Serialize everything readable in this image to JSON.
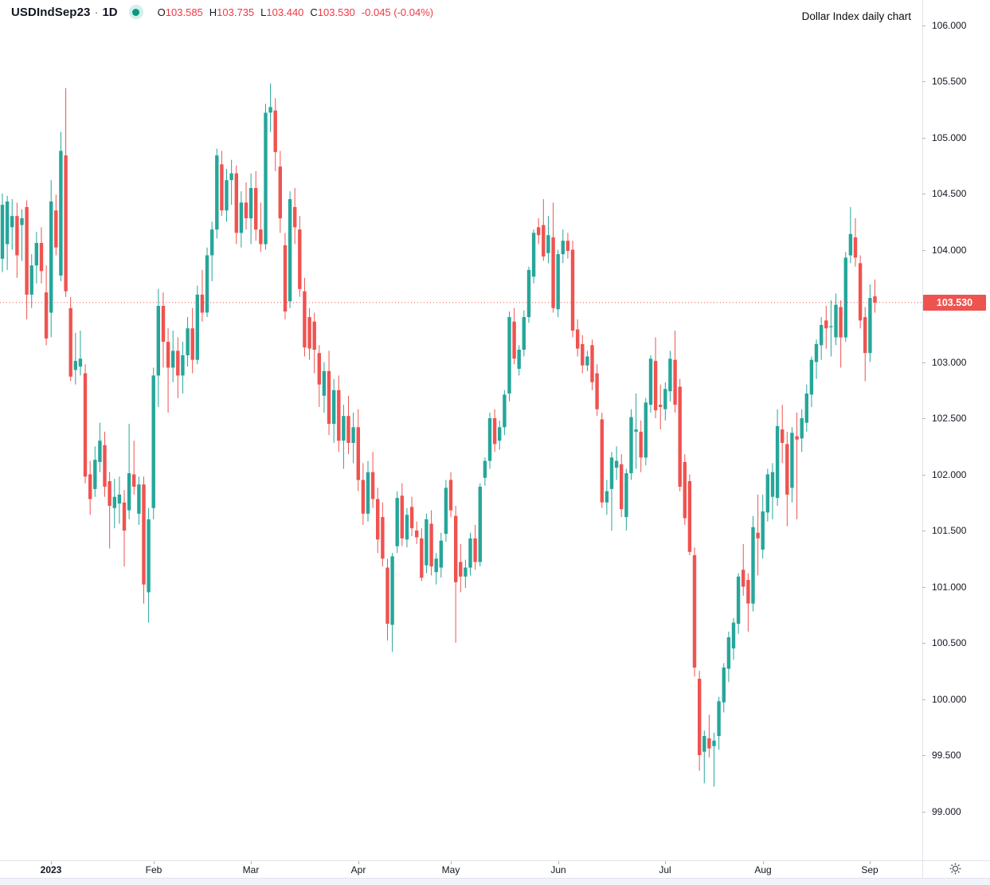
{
  "header": {
    "symbol": "USDIndSep23",
    "separator": "·",
    "interval": "1D",
    "ohlc": {
      "o_label": "O",
      "o": "103.585",
      "h_label": "H",
      "h": "103.735",
      "l_label": "L",
      "l": "103.440",
      "c_label": "C",
      "c": "103.530",
      "change": "-0.045 (-0.04%)"
    }
  },
  "annotation": "Dollar Index daily chart",
  "colors": {
    "up": "#26a69a",
    "down": "#ef5350",
    "price_line": "#ef5350",
    "price_label_bg": "#ef5350",
    "price_label_text": "#ffffff",
    "axis_text": "#131722",
    "axis_line": "#e0e3eb",
    "status_dot": "#089981"
  },
  "price_axis": {
    "labels": [
      "106.000",
      "105.500",
      "105.000",
      "104.500",
      "104.000",
      "103.500",
      "103.000",
      "102.500",
      "102.000",
      "101.500",
      "101.000",
      "100.500",
      "100.000",
      "99.500",
      "99.000"
    ],
    "current_price_label": "103.530"
  },
  "time_axis": {
    "labels": [
      "2023",
      "Feb",
      "Mar",
      "Apr",
      "May",
      "Jun",
      "Jul",
      "Aug",
      "Sep"
    ]
  },
  "chart_data": {
    "type": "candlestick",
    "title": "Dollar Index daily chart",
    "symbol": "USDIndSep23",
    "interval": "1D",
    "last": {
      "open": 103.585,
      "high": 103.735,
      "low": 103.44,
      "close": 103.53,
      "change": -0.045,
      "change_pct": -0.04
    },
    "ylim": [
      98.7,
      106.2
    ],
    "price_ticks": [
      106.0,
      105.5,
      105.0,
      104.5,
      104.0,
      103.5,
      103.0,
      102.5,
      102.0,
      101.5,
      101.0,
      100.5,
      100.0,
      99.5,
      99.0
    ],
    "grid": false,
    "legend_position": "none",
    "time_ticks": [
      {
        "label": "2023",
        "index": 10,
        "bold": true
      },
      {
        "label": "Feb",
        "index": 31
      },
      {
        "label": "Mar",
        "index": 51
      },
      {
        "label": "Apr",
        "index": 73
      },
      {
        "label": "May",
        "index": 92
      },
      {
        "label": "Jun",
        "index": 114
      },
      {
        "label": "Jul",
        "index": 136
      },
      {
        "label": "Aug",
        "index": 156
      },
      {
        "label": "Sep",
        "index": 178
      }
    ],
    "candles": [
      [
        103.92,
        104.5,
        103.8,
        104.4
      ],
      [
        104.05,
        104.48,
        103.82,
        104.43
      ],
      [
        104.2,
        104.45,
        104.0,
        104.3
      ],
      [
        104.3,
        104.42,
        103.75,
        103.95
      ],
      [
        104.22,
        104.36,
        103.9,
        104.28
      ],
      [
        104.38,
        104.44,
        103.38,
        103.6
      ],
      [
        103.6,
        103.96,
        103.48,
        103.86
      ],
      [
        103.86,
        104.16,
        103.7,
        104.06
      ],
      [
        104.06,
        104.2,
        103.7,
        103.81
      ],
      [
        103.62,
        103.86,
        103.15,
        103.21
      ],
      [
        103.44,
        104.62,
        103.22,
        104.43
      ],
      [
        104.35,
        104.49,
        103.95,
        104.02
      ],
      [
        103.77,
        105.05,
        103.72,
        104.88
      ],
      [
        104.84,
        105.44,
        103.58,
        103.63
      ],
      [
        103.48,
        103.58,
        102.83,
        102.87
      ],
      [
        102.93,
        103.26,
        102.8,
        103.01
      ],
      [
        102.96,
        103.28,
        102.88,
        103.03
      ],
      [
        102.9,
        102.98,
        101.92,
        101.98
      ],
      [
        102.0,
        102.12,
        101.64,
        101.78
      ],
      [
        101.87,
        102.25,
        101.8,
        102.13
      ],
      [
        102.11,
        102.46,
        102.02,
        102.3
      ],
      [
        102.26,
        102.38,
        101.8,
        101.89
      ],
      [
        101.94,
        102.02,
        101.34,
        101.72
      ],
      [
        101.7,
        101.96,
        101.52,
        101.8
      ],
      [
        101.74,
        101.98,
        101.56,
        101.82
      ],
      [
        101.75,
        101.86,
        101.18,
        101.5
      ],
      [
        101.68,
        102.45,
        101.6,
        102.01
      ],
      [
        102.0,
        102.3,
        101.82,
        101.89
      ],
      [
        101.65,
        101.98,
        101.55,
        101.91
      ],
      [
        101.91,
        101.98,
        100.85,
        101.02
      ],
      [
        100.95,
        101.7,
        100.68,
        101.6
      ],
      [
        101.7,
        102.95,
        101.6,
        102.88
      ],
      [
        102.88,
        103.65,
        102.6,
        103.5
      ],
      [
        103.5,
        103.62,
        102.95,
        103.18
      ],
      [
        103.18,
        103.3,
        102.55,
        102.95
      ],
      [
        102.95,
        103.28,
        102.82,
        103.1
      ],
      [
        103.1,
        103.22,
        102.68,
        102.88
      ],
      [
        102.88,
        103.18,
        102.72,
        103.06
      ],
      [
        103.06,
        103.4,
        102.96,
        103.3
      ],
      [
        103.3,
        103.48,
        102.9,
        103.02
      ],
      [
        103.02,
        103.68,
        102.98,
        103.6
      ],
      [
        103.6,
        103.82,
        103.36,
        103.44
      ],
      [
        103.44,
        104.02,
        103.4,
        103.95
      ],
      [
        103.95,
        104.25,
        103.72,
        104.18
      ],
      [
        104.18,
        104.9,
        104.1,
        104.84
      ],
      [
        104.76,
        104.88,
        104.3,
        104.35
      ],
      [
        104.35,
        104.72,
        104.25,
        104.62
      ],
      [
        104.62,
        104.8,
        104.4,
        104.68
      ],
      [
        104.68,
        104.75,
        104.05,
        104.15
      ],
      [
        104.15,
        104.52,
        104.02,
        104.42
      ],
      [
        104.42,
        104.6,
        104.18,
        104.28
      ],
      [
        104.28,
        104.68,
        104.05,
        104.55
      ],
      [
        104.55,
        104.7,
        104.08,
        104.18
      ],
      [
        104.18,
        104.42,
        103.98,
        104.05
      ],
      [
        104.05,
        105.3,
        104.0,
        105.22
      ],
      [
        105.22,
        105.48,
        105.05,
        105.27
      ],
      [
        105.24,
        105.35,
        104.7,
        104.87
      ],
      [
        104.74,
        104.88,
        104.15,
        104.28
      ],
      [
        104.04,
        104.15,
        103.38,
        103.45
      ],
      [
        103.54,
        104.52,
        103.48,
        104.45
      ],
      [
        104.38,
        104.55,
        104.05,
        104.2
      ],
      [
        104.18,
        104.3,
        103.58,
        103.65
      ],
      [
        103.63,
        103.75,
        103.05,
        103.13
      ],
      [
        103.4,
        103.48,
        103.02,
        103.12
      ],
      [
        103.36,
        103.44,
        102.9,
        103.11
      ],
      [
        103.08,
        103.15,
        102.6,
        102.8
      ],
      [
        102.7,
        103.0,
        102.55,
        102.92
      ],
      [
        102.92,
        103.1,
        102.35,
        102.45
      ],
      [
        102.45,
        102.85,
        102.28,
        102.75
      ],
      [
        102.75,
        102.88,
        102.2,
        102.3
      ],
      [
        102.3,
        102.62,
        102.05,
        102.52
      ],
      [
        102.52,
        102.7,
        102.18,
        102.28
      ],
      [
        102.28,
        102.55,
        102.1,
        102.42
      ],
      [
        102.42,
        102.58,
        101.85,
        101.95
      ],
      [
        101.95,
        102.1,
        101.55,
        101.65
      ],
      [
        101.65,
        102.12,
        101.58,
        102.02
      ],
      [
        102.02,
        102.2,
        101.7,
        101.78
      ],
      [
        101.78,
        101.88,
        101.3,
        101.42
      ],
      [
        101.62,
        101.75,
        101.18,
        101.25
      ],
      [
        101.17,
        101.25,
        100.52,
        100.67
      ],
      [
        100.66,
        101.3,
        100.42,
        101.27
      ],
      [
        101.36,
        101.85,
        101.3,
        101.79
      ],
      [
        101.81,
        101.92,
        101.36,
        101.43
      ],
      [
        101.42,
        101.7,
        101.35,
        101.64
      ],
      [
        101.71,
        101.8,
        101.45,
        101.52
      ],
      [
        101.5,
        101.58,
        101.38,
        101.44
      ],
      [
        101.43,
        101.52,
        101.05,
        101.08
      ],
      [
        101.19,
        101.65,
        101.12,
        101.6
      ],
      [
        101.56,
        101.68,
        101.1,
        101.18
      ],
      [
        101.13,
        101.3,
        101.02,
        101.25
      ],
      [
        101.17,
        101.48,
        101.08,
        101.41
      ],
      [
        101.47,
        101.95,
        101.4,
        101.88
      ],
      [
        101.95,
        102.02,
        101.62,
        101.68
      ],
      [
        101.63,
        101.72,
        100.5,
        101.04
      ],
      [
        101.22,
        101.38,
        100.95,
        101.09
      ],
      [
        101.09,
        101.24,
        100.99,
        101.17
      ],
      [
        101.17,
        101.48,
        101.1,
        101.43
      ],
      [
        101.43,
        101.55,
        101.15,
        101.22
      ],
      [
        101.22,
        101.92,
        101.18,
        101.89
      ],
      [
        101.97,
        102.15,
        101.9,
        102.12
      ],
      [
        102.12,
        102.55,
        102.05,
        102.5
      ],
      [
        102.5,
        102.58,
        102.2,
        102.27
      ],
      [
        102.3,
        102.48,
        102.22,
        102.42
      ],
      [
        102.42,
        102.75,
        102.35,
        102.71
      ],
      [
        102.72,
        103.45,
        102.65,
        103.4
      ],
      [
        103.36,
        103.48,
        102.98,
        103.03
      ],
      [
        102.94,
        103.15,
        102.88,
        103.11
      ],
      [
        103.11,
        103.46,
        103.05,
        103.4
      ],
      [
        103.4,
        103.85,
        103.35,
        103.82
      ],
      [
        103.76,
        104.18,
        103.7,
        104.15
      ],
      [
        104.2,
        104.28,
        104.05,
        104.13
      ],
      [
        104.22,
        104.45,
        103.9,
        103.94
      ],
      [
        103.97,
        104.3,
        103.88,
        104.13
      ],
      [
        104.11,
        104.42,
        103.44,
        103.48
      ],
      [
        103.47,
        104.0,
        103.4,
        103.96
      ],
      [
        103.96,
        104.18,
        103.88,
        104.08
      ],
      [
        104.08,
        104.15,
        103.92,
        103.99
      ],
      [
        104.0,
        104.08,
        103.22,
        103.28
      ],
      [
        103.29,
        103.38,
        103.05,
        103.12
      ],
      [
        103.16,
        103.24,
        102.9,
        102.97
      ],
      [
        102.97,
        103.1,
        102.92,
        103.05
      ],
      [
        103.15,
        103.2,
        102.75,
        102.82
      ],
      [
        102.9,
        102.98,
        102.52,
        102.58
      ],
      [
        102.49,
        102.55,
        101.7,
        101.75
      ],
      [
        101.75,
        101.95,
        101.64,
        101.85
      ],
      [
        101.87,
        102.2,
        101.5,
        102.15
      ],
      [
        102.06,
        102.25,
        101.95,
        102.12
      ],
      [
        102.09,
        102.18,
        101.62,
        101.69
      ],
      [
        101.62,
        102.05,
        101.5,
        102.01
      ],
      [
        102.01,
        102.58,
        101.95,
        102.51
      ],
      [
        102.38,
        102.72,
        102.05,
        102.4
      ],
      [
        102.38,
        102.48,
        102.02,
        102.15
      ],
      [
        102.15,
        102.68,
        102.08,
        102.64
      ],
      [
        102.62,
        103.06,
        102.55,
        103.03
      ],
      [
        103.01,
        103.22,
        102.5,
        102.57
      ],
      [
        102.62,
        102.8,
        102.4,
        102.6
      ],
      [
        102.58,
        102.82,
        102.48,
        102.76
      ],
      [
        102.74,
        103.1,
        102.65,
        103.03
      ],
      [
        103.02,
        103.28,
        102.55,
        102.62
      ],
      [
        102.78,
        102.85,
        101.85,
        101.89
      ],
      [
        102.11,
        102.18,
        101.55,
        101.61
      ],
      [
        101.94,
        102.0,
        101.28,
        101.31
      ],
      [
        101.28,
        101.35,
        100.2,
        100.28
      ],
      [
        100.18,
        100.25,
        99.36,
        99.5
      ],
      [
        99.53,
        99.72,
        99.25,
        99.67
      ],
      [
        99.65,
        99.86,
        99.48,
        99.56
      ],
      [
        99.58,
        99.7,
        99.22,
        99.63
      ],
      [
        99.67,
        100.02,
        99.55,
        99.98
      ],
      [
        99.97,
        100.32,
        99.88,
        100.28
      ],
      [
        100.27,
        100.6,
        100.15,
        100.55
      ],
      [
        100.45,
        100.72,
        100.35,
        100.68
      ],
      [
        100.67,
        101.12,
        100.58,
        101.09
      ],
      [
        101.15,
        101.38,
        100.92,
        101.0
      ],
      [
        101.06,
        101.12,
        100.6,
        100.85
      ],
      [
        100.85,
        101.63,
        100.78,
        101.53
      ],
      [
        101.48,
        101.82,
        101.1,
        101.43
      ],
      [
        101.33,
        101.82,
        101.25,
        101.67
      ],
      [
        101.66,
        102.05,
        101.58,
        102.0
      ],
      [
        101.8,
        102.1,
        101.6,
        102.02
      ],
      [
        101.79,
        102.58,
        101.72,
        102.43
      ],
      [
        102.4,
        102.62,
        102.1,
        102.28
      ],
      [
        102.27,
        102.38,
        101.54,
        101.82
      ],
      [
        101.88,
        102.42,
        101.75,
        102.37
      ],
      [
        102.34,
        102.55,
        101.6,
        102.31
      ],
      [
        102.32,
        102.58,
        102.2,
        102.5
      ],
      [
        102.46,
        102.8,
        102.38,
        102.72
      ],
      [
        102.71,
        103.05,
        102.6,
        103.02
      ],
      [
        103.0,
        103.2,
        102.85,
        103.16
      ],
      [
        103.15,
        103.4,
        103.02,
        103.33
      ],
      [
        103.37,
        103.5,
        103.12,
        103.3
      ],
      [
        103.31,
        103.55,
        103.05,
        103.32
      ],
      [
        103.22,
        103.61,
        103.15,
        103.51
      ],
      [
        103.49,
        103.55,
        102.95,
        103.22
      ],
      [
        103.22,
        103.98,
        103.18,
        103.93
      ],
      [
        103.95,
        104.38,
        103.88,
        104.14
      ],
      [
        104.11,
        104.28,
        103.85,
        103.93
      ],
      [
        103.88,
        103.95,
        103.3,
        103.37
      ],
      [
        103.4,
        103.49,
        102.83,
        103.08
      ],
      [
        103.08,
        103.69,
        103.0,
        103.57
      ],
      [
        103.585,
        103.735,
        103.44,
        103.53
      ]
    ]
  }
}
